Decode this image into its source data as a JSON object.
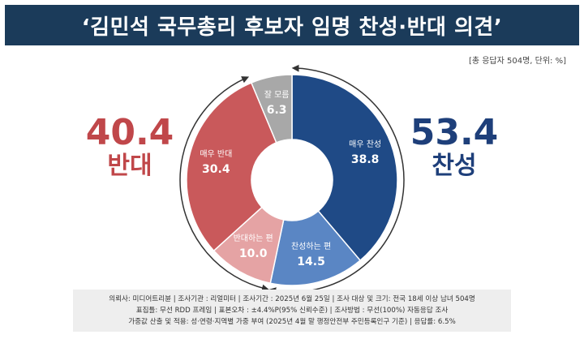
{
  "title": "‘김민석 국무총리 후보자 임명 찬성·반대 의견’",
  "sample_note": "[총 응답자 504명, 단위: %]",
  "oppose_total": {
    "value": "40.4",
    "label": "반대"
  },
  "support_total": {
    "value": "53.4",
    "label": "찬성"
  },
  "colors": {
    "strongly_support": "#1f4a86",
    "somewhat_support": "#5a86c4",
    "somewhat_oppose": "#e5a3a4",
    "strongly_oppose": "#c9595b",
    "dont_know": "#a8a8a8",
    "oppose_text": "#c0474a",
    "support_text": "#1e3f7a",
    "title_bg": "#1b3b5a"
  },
  "chart_data": {
    "type": "pie",
    "title": "‘김민석 국무총리 후보자 임명 찬성·반대 의견’",
    "unit": "%",
    "slices": [
      {
        "label": "매우 찬성",
        "value": 38.8,
        "value_text": "38.8"
      },
      {
        "label": "찬성하는 편",
        "value": 14.5,
        "value_text": "14.5"
      },
      {
        "label": "반대하는 편",
        "value": 10.0,
        "value_text": "10.0"
      },
      {
        "label": "매우 반대",
        "value": 30.4,
        "value_text": "30.4"
      },
      {
        "label": "잘 모름",
        "value": 6.3,
        "value_text": "6.3"
      }
    ],
    "groups": [
      {
        "label": "찬성",
        "value": 53.4
      },
      {
        "label": "반대",
        "value": 40.4
      }
    ]
  },
  "footer": {
    "line1": "의뢰사: 미디어트리뷴 | 조사기관 : 리얼미터 | 조사기간 : 2025년 6월 25일 | 조사 대상 및 크기: 전국 18세 이상 남녀 504명",
    "line2": "표집틀: 무선 RDD 프레임 | 표본오차 : ±4.4%P(95% 신뢰수준) | 조사방법 : 무선(100%) 자동응답 조사",
    "line3": "가중값 산출 및 적용: 성·연령·지역별 가중 부여 (2025년 4월 말 행정안전부 주민등록인구 기준) | 응답률: 6.5%"
  }
}
